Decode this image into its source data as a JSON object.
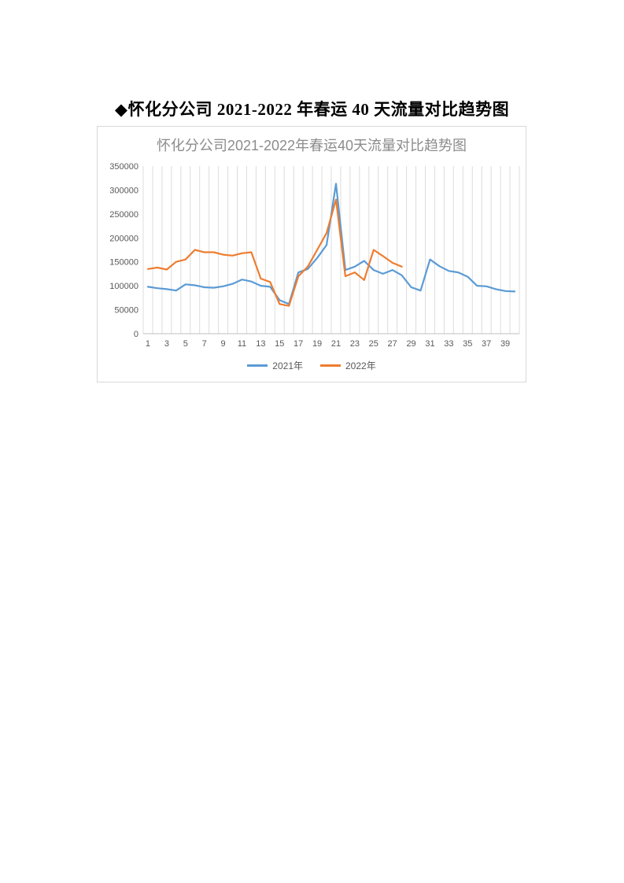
{
  "page": {
    "heading": "◆怀化分公司 2021-2022 年春运 40 天流量对比趋势图"
  },
  "chart_data": {
    "type": "line",
    "title": "怀化分公司2021-2022年春运40天流量对比趋势图",
    "xlabel": "",
    "ylabel": "",
    "ylim": [
      0,
      350000
    ],
    "yticks": [
      0,
      50000,
      100000,
      150000,
      200000,
      250000,
      300000,
      350000
    ],
    "xticks": [
      1,
      3,
      5,
      7,
      9,
      11,
      13,
      15,
      17,
      19,
      21,
      23,
      25,
      27,
      29,
      31,
      33,
      35,
      37,
      39
    ],
    "grid": "vertical",
    "legend_position": "bottom",
    "categories": [
      1,
      2,
      3,
      4,
      5,
      6,
      7,
      8,
      9,
      10,
      11,
      12,
      13,
      14,
      15,
      16,
      17,
      18,
      19,
      20,
      21,
      22,
      23,
      24,
      25,
      26,
      27,
      28,
      29,
      30,
      31,
      32,
      33,
      34,
      35,
      36,
      37,
      38,
      39,
      40
    ],
    "series": [
      {
        "name": "2021年",
        "color": "#5b9bd5",
        "values": [
          98000,
          95000,
          93000,
          90000,
          103000,
          101000,
          97000,
          96000,
          99000,
          104000,
          113000,
          109000,
          100000,
          98000,
          70000,
          62000,
          128000,
          135000,
          158000,
          185000,
          313000,
          133000,
          140000,
          152000,
          133000,
          125000,
          133000,
          122000,
          97000,
          90000,
          155000,
          141000,
          131000,
          128000,
          119000,
          100000,
          99000,
          93000,
          89000,
          88000
        ]
      },
      {
        "name": "2022年",
        "color": "#ed7d31",
        "values": [
          135000,
          138000,
          134000,
          150000,
          155000,
          175000,
          170000,
          170000,
          165000,
          163000,
          168000,
          170000,
          115000,
          108000,
          62000,
          58000,
          120000,
          140000,
          175000,
          210000,
          280000,
          120000,
          128000,
          112000,
          175000,
          162000,
          148000,
          140000,
          null,
          null,
          null,
          null,
          null,
          null,
          null,
          null,
          null,
          null,
          null,
          null
        ]
      }
    ],
    "axis_text_color": "#595959",
    "gridline_color": "#dcdcdc",
    "axis_line_color": "#bfbfbf"
  }
}
